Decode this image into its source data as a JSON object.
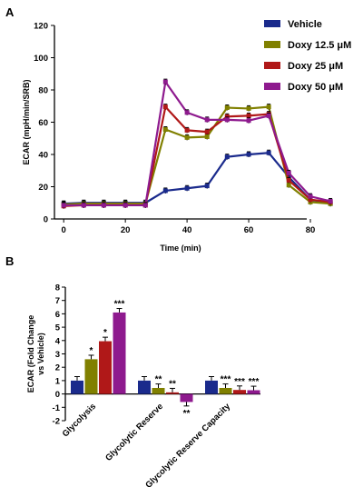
{
  "chart_data": [
    {
      "panel_label": "A",
      "type": "line",
      "xlabel": "Time (min)",
      "ylabel": "ECAR (mpH/min/SRB)",
      "xlim": [
        -3,
        90
      ],
      "ylim": [
        0,
        120
      ],
      "x_ticks": [
        "0",
        "20",
        "40",
        "60",
        "80"
      ],
      "y_ticks": [
        "0",
        "20",
        "40",
        "60",
        "80",
        "100",
        "120"
      ],
      "x": [
        0,
        6.5,
        13,
        20,
        26.5,
        33,
        40,
        46.5,
        53,
        60,
        66.5,
        73,
        80,
        86.5
      ],
      "legend_position": "top-right",
      "series": [
        {
          "name": "Vehicle",
          "color": "#1a2a8c",
          "values": [
            9.5,
            10,
            10,
            10,
            10,
            17.5,
            19,
            20.5,
            38.5,
            40,
            41,
            26,
            12,
            9.5
          ]
        },
        {
          "name": "Doxy 12.5 μM",
          "color": "#808000",
          "values": [
            9,
            9.5,
            9.5,
            9.5,
            9.5,
            55.5,
            50.5,
            51,
            69,
            68.5,
            69.5,
            21,
            10.5,
            9.5
          ]
        },
        {
          "name": "Doxy 25 μM",
          "color": "#b01818",
          "values": [
            8,
            8.5,
            8.5,
            8.5,
            8.5,
            69.5,
            55,
            54,
            63.5,
            64,
            65,
            24,
            12,
            10.5
          ]
        },
        {
          "name": "Doxy 50 μM",
          "color": "#8e1a8e",
          "values": [
            8.5,
            8.5,
            8.5,
            8.5,
            8.5,
            85,
            66,
            61.5,
            61.5,
            61,
            64,
            28.5,
            14,
            11
          ]
        }
      ]
    },
    {
      "panel_label": "B",
      "type": "bar",
      "ylabel": "ECAR (Fold Change vs Vehicle)",
      "ylim": [
        -2,
        8
      ],
      "y_ticks": [
        "-2",
        "-1",
        "0",
        "1",
        "2",
        "3",
        "4",
        "5",
        "6",
        "7",
        "8"
      ],
      "categories": [
        "Glycolysis",
        "Glycolytic Reserve",
        "Glycolytic Reserve Capacity"
      ],
      "series": [
        {
          "name": "Vehicle",
          "color": "#1a2a8c",
          "values": [
            1.0,
            1.0,
            1.0
          ],
          "sig": [
            "",
            "",
            ""
          ]
        },
        {
          "name": "Doxy 12.5 μM",
          "color": "#808000",
          "values": [
            2.6,
            0.45,
            0.45
          ],
          "sig": [
            "*",
            "**",
            "***"
          ]
        },
        {
          "name": "Doxy 25 μM",
          "color": "#b01818",
          "values": [
            3.95,
            0.12,
            0.3
          ],
          "sig": [
            "*",
            "**",
            "***"
          ]
        },
        {
          "name": "Doxy 50 μM",
          "color": "#8e1a8e",
          "values": [
            6.1,
            -0.6,
            0.28
          ],
          "sig": [
            "***",
            "**",
            "***"
          ]
        }
      ]
    }
  ]
}
